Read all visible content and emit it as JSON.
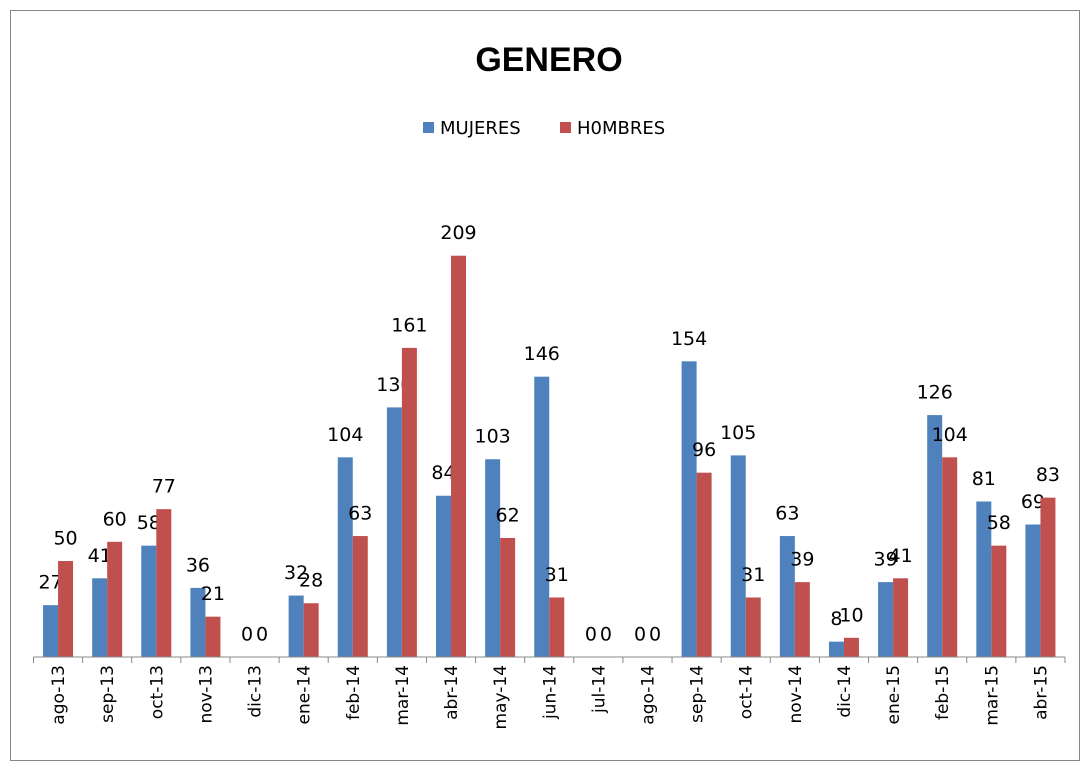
{
  "chart_data": {
    "type": "bar",
    "title": "GENERO",
    "categories": [
      "ago-13",
      "sep-13",
      "oct-13",
      "nov-13",
      "dic-13",
      "ene-14",
      "feb-14",
      "mar-14",
      "abr-14",
      "may-14",
      "jun-14",
      "jul-14",
      "ago-14",
      "sep-14",
      "oct-14",
      "nov-14",
      "dic-14",
      "ene-15",
      "feb-15",
      "mar-15",
      "abr-15"
    ],
    "series": [
      {
        "name": "MUJERES",
        "color": "#4f81bd",
        "values": [
          27,
          41,
          58,
          36,
          0,
          32,
          104,
          130,
          84,
          103,
          146,
          0,
          0,
          154,
          105,
          63,
          8,
          39,
          126,
          81,
          69
        ]
      },
      {
        "name": "H0MBRES",
        "color": "#c0504d",
        "values": [
          50,
          60,
          77,
          21,
          0,
          28,
          63,
          161,
          209,
          62,
          31,
          0,
          0,
          96,
          31,
          39,
          10,
          41,
          104,
          58,
          83
        ]
      }
    ],
    "ylim": [
      0,
      250
    ],
    "legend": "top"
  }
}
